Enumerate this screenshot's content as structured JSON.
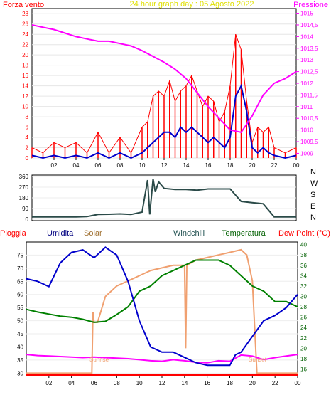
{
  "chart_data": [
    {
      "type": "line",
      "title": "24 hour graph day : 05 Agosto 2022",
      "left_axis_label": "Forza vento",
      "right_axis_label": "Pressione",
      "colors": {
        "wind": "#ff0000",
        "gust": "#ff0000",
        "avg": "#0000cc",
        "pressure": "#ff00ff",
        "title": "#e0e000"
      },
      "x_ticks": [
        "02",
        "04",
        "06",
        "08",
        "10",
        "12",
        "14",
        "16",
        "18",
        "20",
        "22",
        "00"
      ],
      "xlim": [
        0,
        24
      ],
      "y_left": {
        "ticks": [
          0,
          2,
          4,
          6,
          8,
          10,
          12,
          14,
          16,
          18,
          20,
          22,
          24,
          26,
          28
        ],
        "range": [
          0,
          29
        ]
      },
      "y_right": {
        "ticks": [
          "1009",
          "1009,5",
          "1010",
          "1010,5",
          "1011",
          "1011,5",
          "1012",
          "1012,5",
          "1013",
          "1013,5",
          "1014",
          "1014,5",
          "1015"
        ],
        "range": [
          1008.8,
          1015.2
        ]
      },
      "series": [
        {
          "name": "Pressione",
          "axis": "right",
          "x": [
            0,
            1,
            2,
            3,
            4,
            5,
            6,
            7,
            8,
            9,
            10,
            11,
            12,
            13,
            14,
            15,
            16,
            17,
            18,
            19,
            20,
            21,
            22,
            23,
            24
          ],
          "y": [
            1014.5,
            1014.4,
            1014.3,
            1014.15,
            1014.0,
            1013.9,
            1013.8,
            1013.8,
            1013.7,
            1013.6,
            1013.4,
            1013.15,
            1012.9,
            1012.6,
            1012.2,
            1011.6,
            1011.0,
            1010.5,
            1010.0,
            1009.9,
            1010.6,
            1011.5,
            1012.0,
            1012.2,
            1012.5
          ]
        },
        {
          "name": "gust",
          "axis": "left",
          "x": [
            0,
            1,
            2,
            3,
            4,
            5,
            6,
            7,
            8,
            9,
            10,
            10.5,
            11,
            11.5,
            12,
            12.5,
            13,
            13.5,
            14,
            14.5,
            15,
            15.5,
            16,
            16.5,
            17,
            17.5,
            18,
            18.5,
            19,
            19.5,
            20,
            20.5,
            21,
            21.5,
            22,
            23,
            24
          ],
          "y": [
            2,
            1,
            3,
            2,
            3,
            1,
            5,
            1,
            4,
            1,
            6,
            7,
            12,
            13,
            12,
            15,
            11,
            13,
            14,
            16,
            13,
            10,
            12,
            11,
            7,
            9,
            14,
            24,
            21,
            11,
            3,
            6,
            5,
            6,
            2,
            1,
            2
          ]
        },
        {
          "name": "avg",
          "axis": "left",
          "x": [
            0,
            1,
            2,
            3,
            4,
            5,
            6,
            7,
            8,
            9,
            10,
            10.5,
            11,
            11.5,
            12,
            12.5,
            13,
            13.5,
            14,
            14.5,
            15,
            15.5,
            16,
            16.5,
            17,
            17.5,
            18,
            18.5,
            19,
            19.5,
            20,
            20.5,
            21,
            21.5,
            22,
            23,
            24
          ],
          "y": [
            0.5,
            0,
            0.5,
            0,
            0.5,
            0,
            1,
            0,
            1,
            0,
            1,
            2,
            3,
            4,
            5,
            5,
            4,
            6,
            5,
            6,
            5,
            4,
            3,
            4,
            3,
            2,
            4,
            12,
            14,
            9,
            2,
            1,
            2,
            1,
            0.5,
            0,
            0.5
          ]
        }
      ]
    },
    {
      "type": "line",
      "y_ticks": [
        "0",
        "90",
        "180",
        "270",
        "360"
      ],
      "ylim": [
        0,
        360
      ],
      "compass": [
        "N",
        "W",
        "S",
        "E",
        "N"
      ],
      "x_ticks": [],
      "series": [
        {
          "name": "direction",
          "color": "#2a4a48",
          "x": [
            0,
            4,
            5,
            6,
            7,
            8,
            9,
            10,
            10.5,
            10.7,
            11,
            11.2,
            11.5,
            12,
            13,
            14,
            15,
            16,
            17,
            18,
            19,
            20,
            20.5,
            21,
            22,
            23,
            24
          ],
          "y": [
            20,
            20,
            22,
            40,
            42,
            45,
            40,
            60,
            330,
            40,
            340,
            230,
            315,
            260,
            250,
            250,
            245,
            255,
            255,
            255,
            150,
            140,
            135,
            130,
            20,
            20,
            20
          ]
        }
      ]
    },
    {
      "type": "line",
      "legend": [
        "Pioggia",
        "Umidita",
        "Solar",
        "Windchill",
        "Temperatura",
        "Dew Point (°C)"
      ],
      "legend_colors": [
        "#ff0000",
        "#000080",
        "#a07030",
        "#205050",
        "#006000",
        "#ff0000"
      ],
      "annotations": [
        "Sunrise",
        "Sunset"
      ],
      "x_ticks": [
        "02",
        "04",
        "06",
        "08",
        "10",
        "12",
        "14",
        "16",
        "18",
        "20",
        "22",
        "00"
      ],
      "xlim": [
        0,
        24
      ],
      "y_left": {
        "ticks": [
          30,
          35,
          40,
          45,
          50,
          55,
          60,
          65,
          70,
          75
        ],
        "range": [
          29,
          80
        ]
      },
      "y_right": {
        "ticks": [
          16,
          18,
          20,
          22,
          24,
          26,
          28,
          30,
          32,
          34,
          36,
          38,
          40
        ],
        "range": [
          14.7,
          40.5
        ]
      },
      "series": [
        {
          "name": "Umidita",
          "axis": "left",
          "color": "#0000cc",
          "x": [
            0,
            1,
            2,
            3,
            4,
            5,
            6,
            7,
            8,
            9,
            10,
            11,
            12,
            13,
            14,
            15,
            16,
            17,
            18,
            18.5,
            19,
            20,
            21,
            22,
            23,
            24
          ],
          "y": [
            66,
            65,
            63,
            72,
            76,
            77,
            74,
            78,
            75,
            65,
            50,
            40,
            38,
            38,
            36,
            34,
            33,
            33,
            33,
            37,
            38,
            44,
            50,
            52,
            55,
            60
          ]
        },
        {
          "name": "Temperatura",
          "axis": "right",
          "color": "#008000",
          "x": [
            0,
            1,
            2,
            3,
            4,
            5,
            6,
            7,
            8,
            9,
            10,
            11,
            12,
            13,
            14,
            15,
            16,
            17,
            18,
            19,
            20,
            21,
            22,
            23,
            24
          ],
          "y": [
            27.5,
            27,
            26.6,
            26.2,
            26.0,
            25.6,
            25.0,
            25.2,
            26.5,
            28,
            31,
            32,
            34,
            35,
            36,
            37,
            37,
            37,
            36,
            34,
            32,
            31,
            29,
            29,
            28
          ]
        },
        {
          "name": "Solar",
          "axis": "right",
          "color": "#f0a070",
          "x": [
            0,
            5.8,
            5.9,
            6,
            6.3,
            7,
            8,
            9,
            10,
            11,
            12,
            13,
            14,
            14.1,
            14.2,
            15,
            16,
            17,
            18,
            19,
            19.5,
            20,
            20.2,
            20.4,
            24
          ],
          "y": [
            15.2,
            15.2,
            27,
            25,
            25,
            30,
            32,
            33,
            34,
            35,
            35.5,
            36,
            36,
            20,
            36,
            37,
            37.5,
            38,
            38.5,
            39,
            38,
            33,
            24,
            15.2,
            15.2
          ]
        },
        {
          "name": "Dew Point (°C)",
          "axis": "right",
          "color": "#ff00ff",
          "x": [
            0,
            1,
            2,
            3,
            4,
            5,
            6,
            7,
            8,
            9,
            10,
            11,
            12,
            13,
            14,
            15,
            16,
            17,
            18,
            19,
            20,
            21,
            22,
            23,
            24
          ],
          "y": [
            18.8,
            18.6,
            18.5,
            18.4,
            18.3,
            18.2,
            18.3,
            18.2,
            18.1,
            18.0,
            17.8,
            17.6,
            17.5,
            17.8,
            17.6,
            17.3,
            17.2,
            17.6,
            17.5,
            18.7,
            18.5,
            17.8,
            18.2,
            18.5,
            18.8
          ]
        }
      ]
    }
  ]
}
